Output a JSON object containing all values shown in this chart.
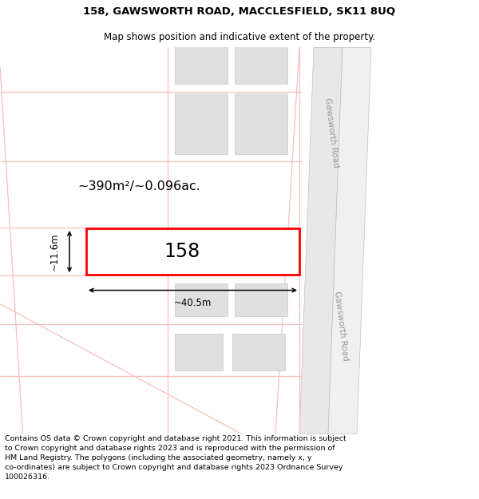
{
  "title_line1": "158, GAWSWORTH ROAD, MACCLESFIELD, SK11 8UQ",
  "title_line2": "Map shows position and indicative extent of the property.",
  "footer_text": "Contains OS data © Crown copyright and database right 2021. This information is subject to Crown copyright and database rights 2023 and is reproduced with the permission of HM Land Registry. The polygons (including the associated geometry, namely x, y co-ordinates) are subject to Crown copyright and database rights 2023 Ordnance Survey 100026316.",
  "background_color": "#ffffff",
  "road_color": "#f5c0c0",
  "road_fill": "#f9f0f0",
  "road_gray_fill": "#e8e8e8",
  "road_gray_edge": "#c0c0c0",
  "building_color": "#e0e0e0",
  "building_edge_color": "#c8c8c8",
  "highlight_color": "#ff0000",
  "road_label_color": "#999999",
  "area_text": "~390m²/~0.096ac.",
  "width_text": "~40.5m",
  "height_text": "~11.6m",
  "number_text": "158"
}
